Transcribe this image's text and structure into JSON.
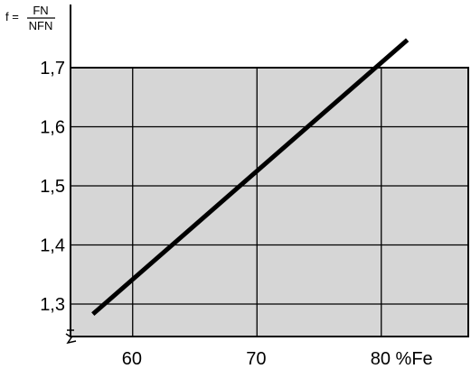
{
  "chart_data": {
    "type": "line",
    "ylabel": {
      "prefix": "f =",
      "numerator": "FN",
      "denominator": "NFN"
    },
    "x_ticks": [
      {
        "value": 60,
        "label": "60"
      },
      {
        "value": 70,
        "label": "70"
      },
      {
        "value": 80,
        "label": "80 %Fe"
      }
    ],
    "y_ticks": [
      {
        "value": 1.3,
        "label": "1,3"
      },
      {
        "value": 1.4,
        "label": "1,4"
      },
      {
        "value": 1.5,
        "label": "1,5"
      },
      {
        "value": 1.6,
        "label": "1,6"
      },
      {
        "value": 1.7,
        "label": "1,7"
      }
    ],
    "shaded_region": {
      "x_from": 55,
      "x_to": 87,
      "y_from": 1.245,
      "y_to": 1.7,
      "color": "#d6d6d6"
    },
    "grid": true,
    "series": [
      {
        "x": [
          56.8,
          82.1
        ],
        "y": [
          1.283,
          1.747
        ],
        "color": "#000000"
      }
    ]
  }
}
